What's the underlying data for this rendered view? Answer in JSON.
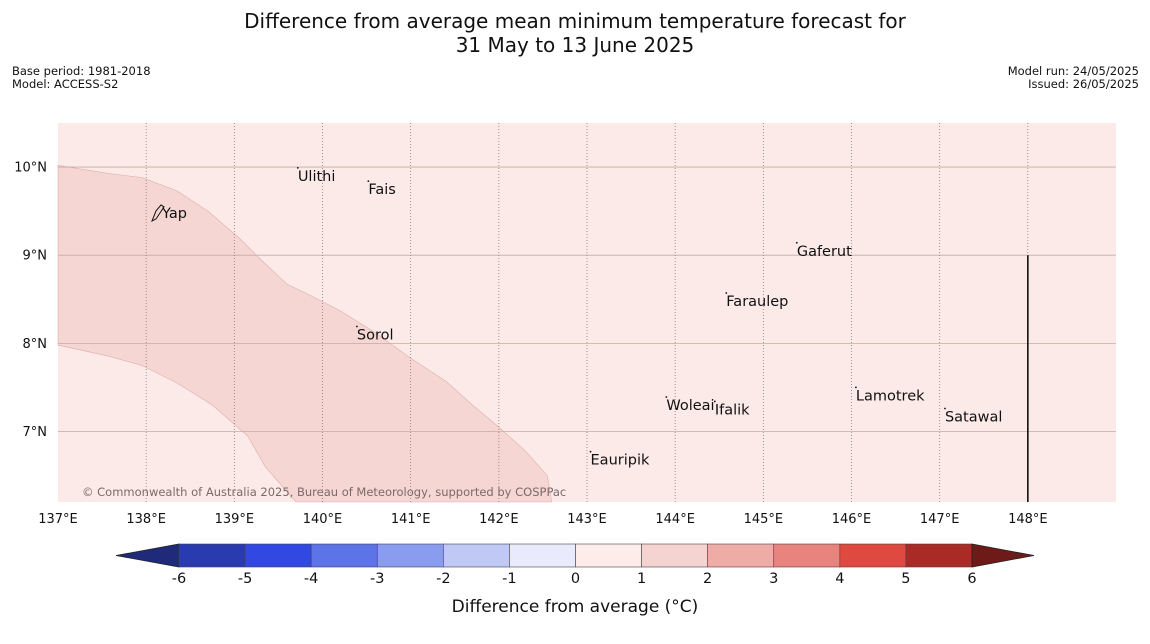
{
  "title": {
    "line1": "Difference from average mean minimum temperature forecast for",
    "line2": "31 May to 13 June 2025"
  },
  "meta_left": {
    "base_period": "Base period: 1981-2018",
    "model": "Model: ACCESS-S2"
  },
  "meta_right": {
    "model_run": "Model run: 24/05/2025",
    "issued": "Issued: 26/05/2025"
  },
  "map": {
    "lon_range": [
      137,
      149
    ],
    "lat_range": [
      6.2,
      10.5
    ],
    "background_color": "#fbeae8",
    "anomaly_band_color": "#f5d6d3",
    "lon_ticks": [
      {
        "value": 137,
        "label": "137°E"
      },
      {
        "value": 138,
        "label": "138°E"
      },
      {
        "value": 139,
        "label": "139°E"
      },
      {
        "value": 140,
        "label": "140°E"
      },
      {
        "value": 141,
        "label": "141°E"
      },
      {
        "value": 142,
        "label": "142°E"
      },
      {
        "value": 143,
        "label": "143°E"
      },
      {
        "value": 144,
        "label": "144°E"
      },
      {
        "value": 145,
        "label": "145°E"
      },
      {
        "value": 146,
        "label": "146°E"
      },
      {
        "value": 147,
        "label": "147°E"
      },
      {
        "value": 148,
        "label": "148°E"
      }
    ],
    "lat_ticks": [
      {
        "value": 10,
        "label": "10°N"
      },
      {
        "value": 9,
        "label": "9°N"
      },
      {
        "value": 8,
        "label": "8°N"
      },
      {
        "value": 7,
        "label": "7°N"
      }
    ],
    "anomaly_band": [
      [
        137.0,
        10.02
      ],
      [
        137.55,
        9.93
      ],
      [
        137.95,
        9.88
      ],
      [
        138.35,
        9.73
      ],
      [
        138.7,
        9.5
      ],
      [
        139.05,
        9.2
      ],
      [
        139.3,
        8.95
      ],
      [
        139.6,
        8.67
      ],
      [
        139.85,
        8.55
      ],
      [
        140.2,
        8.37
      ],
      [
        140.6,
        8.12
      ],
      [
        141.0,
        7.83
      ],
      [
        141.4,
        7.57
      ],
      [
        141.7,
        7.3
      ],
      [
        142.0,
        7.05
      ],
      [
        142.3,
        6.78
      ],
      [
        142.55,
        6.5
      ],
      [
        142.6,
        6.2
      ],
      [
        139.7,
        6.2
      ],
      [
        139.35,
        6.6
      ],
      [
        139.15,
        6.95
      ],
      [
        138.75,
        7.3
      ],
      [
        138.35,
        7.55
      ],
      [
        137.95,
        7.75
      ],
      [
        137.55,
        7.86
      ],
      [
        137.0,
        7.98
      ]
    ],
    "islands": [
      {
        "name": "Yap",
        "lon": 138.18,
        "lat": 9.48
      },
      {
        "name": "Ulithi",
        "lon": 139.72,
        "lat": 9.9
      },
      {
        "name": "Fais",
        "lon": 140.52,
        "lat": 9.75
      },
      {
        "name": "Gaferut",
        "lon": 145.38,
        "lat": 9.05
      },
      {
        "name": "Faraulep",
        "lon": 144.58,
        "lat": 8.48
      },
      {
        "name": "Sorol",
        "lon": 140.39,
        "lat": 8.1
      },
      {
        "name": "Woleai",
        "lon": 143.9,
        "lat": 7.3
      },
      {
        "name": "Ifalik",
        "lon": 144.45,
        "lat": 7.25
      },
      {
        "name": "Lamotrek",
        "lon": 146.05,
        "lat": 7.41
      },
      {
        "name": "Satawal",
        "lon": 147.06,
        "lat": 7.17
      },
      {
        "name": "Eauripik",
        "lon": 143.04,
        "lat": 6.68
      }
    ],
    "boundary_line": {
      "lon": 148,
      "lat_from": 6.2,
      "lat_to": 9
    }
  },
  "copyright": "© Commonwealth of Australia 2025, Bureau of Meteorology, supported by COSPPac",
  "colorbar": {
    "label": "Difference from average (°C)",
    "ticks": [
      "-6",
      "-5",
      "-4",
      "-3",
      "-2",
      "-1",
      "0",
      "1",
      "2",
      "3",
      "4",
      "5",
      "6"
    ],
    "low_extend_color": "#1f2b7a",
    "high_extend_color": "#6e1a18",
    "colors": [
      "#2a3bb0",
      "#3149e0",
      "#5c74e8",
      "#8a9cf0",
      "#c0c8f6",
      "#e9ebfc",
      "#fdecea",
      "#f5d3d0",
      "#efaca6",
      "#e8847d",
      "#de4a40",
      "#aa2a26"
    ]
  }
}
